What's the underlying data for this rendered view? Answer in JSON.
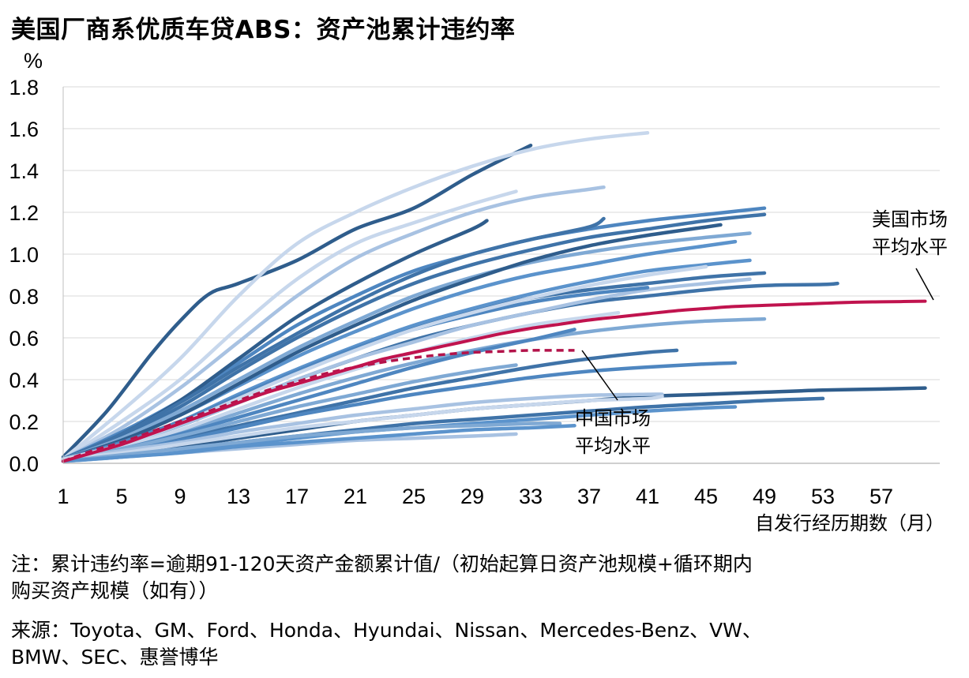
{
  "title": "美国厂商系优质车贷ABS：资产池累计违约率",
  "notes": {
    "line1": "注：累计违约率=逾期91-120天资产金额累计值/（初始起算日资产池规模+循环期内",
    "line2": "购买资产规模（如有））",
    "line3": "来源：Toyota、GM、Ford、Honda、Hyundai、Nissan、Mercedes-Benz、VW、",
    "line4": "BMW、SEC、惠誉博华"
  },
  "colors": {
    "us_avg": "#c0134e",
    "cn_avg": "#b3134a",
    "pool_palette": [
      "#2f5d8c",
      "#3f73a8",
      "#4e86c0",
      "#5b93cc",
      "#7fa9d4",
      "#a8c2e2",
      "#c7d7ec"
    ]
  },
  "chart_data": {
    "type": "line",
    "title": "美国厂商系优质车贷ABS：资产池累计违约率",
    "xlabel": "自发行经历期数（月）",
    "ylabel": "%",
    "xlim": [
      1,
      61
    ],
    "ylim": [
      0,
      1.8
    ],
    "xticks": [
      1,
      5,
      9,
      13,
      17,
      21,
      25,
      29,
      33,
      37,
      41,
      45,
      49,
      53,
      57
    ],
    "yticks": [
      0.0,
      0.2,
      0.4,
      0.6,
      0.8,
      1.0,
      1.2,
      1.4,
      1.6,
      1.8
    ],
    "grid": "horizontal",
    "annotations": [
      {
        "text_line1": "美国市场",
        "text_line2": "平均水平",
        "points_to": {
          "x": 60,
          "y": 0.775
        }
      },
      {
        "text_line1": "中国市场",
        "text_line2": "平均水平",
        "points_to": {
          "x": 36,
          "y": 0.54
        }
      }
    ],
    "series": [
      {
        "role": "us-average",
        "style": "solid",
        "color": "#c0134e",
        "x": [
          1,
          3,
          5,
          7,
          9,
          11,
          13,
          15,
          17,
          19,
          21,
          23,
          25,
          27,
          29,
          31,
          33,
          35,
          37,
          39,
          41,
          43,
          45,
          47,
          49,
          51,
          53,
          55,
          57,
          60
        ],
        "y": [
          0.01,
          0.05,
          0.09,
          0.14,
          0.19,
          0.24,
          0.29,
          0.34,
          0.38,
          0.42,
          0.46,
          0.5,
          0.53,
          0.56,
          0.59,
          0.62,
          0.645,
          0.665,
          0.685,
          0.7,
          0.715,
          0.73,
          0.74,
          0.75,
          0.755,
          0.76,
          0.765,
          0.77,
          0.772,
          0.775
        ]
      },
      {
        "role": "china-average",
        "style": "dashed",
        "color": "#b3134a",
        "x": [
          1,
          3,
          5,
          7,
          9,
          11,
          13,
          15,
          17,
          19,
          21,
          23,
          25,
          27,
          29,
          31,
          33,
          35,
          36
        ],
        "y": [
          0.01,
          0.06,
          0.1,
          0.15,
          0.2,
          0.25,
          0.3,
          0.35,
          0.39,
          0.43,
          0.46,
          0.485,
          0.505,
          0.52,
          0.53,
          0.535,
          0.54,
          0.54,
          0.54
        ]
      },
      {
        "role": "pool",
        "color": "#2f5d8c",
        "x": [
          1,
          4,
          7,
          9,
          11,
          13,
          17,
          21,
          25,
          29,
          33
        ],
        "y": [
          0.03,
          0.25,
          0.52,
          0.68,
          0.81,
          0.86,
          0.97,
          1.12,
          1.22,
          1.38,
          1.52
        ]
      },
      {
        "role": "pool",
        "color": "#c7d7ec",
        "x": [
          1,
          5,
          9,
          13,
          17,
          21,
          25,
          29,
          33,
          37,
          41
        ],
        "y": [
          0.02,
          0.25,
          0.5,
          0.8,
          1.05,
          1.2,
          1.32,
          1.42,
          1.5,
          1.55,
          1.58
        ]
      },
      {
        "role": "pool",
        "color": "#c7d7ec",
        "x": [
          1,
          5,
          9,
          13,
          17,
          21,
          25,
          29,
          32
        ],
        "y": [
          0.02,
          0.2,
          0.4,
          0.65,
          0.88,
          1.05,
          1.15,
          1.24,
          1.3
        ]
      },
      {
        "role": "pool",
        "color": "#a8c2e2",
        "x": [
          1,
          5,
          9,
          13,
          17,
          21,
          25,
          29,
          33,
          37,
          38
        ],
        "y": [
          0.02,
          0.17,
          0.36,
          0.58,
          0.8,
          0.98,
          1.1,
          1.2,
          1.27,
          1.31,
          1.32
        ]
      },
      {
        "role": "pool",
        "color": "#4e86c0",
        "x": [
          1,
          5,
          9,
          13,
          17,
          21,
          25,
          29,
          33,
          37,
          41,
          45,
          49
        ],
        "y": [
          0.02,
          0.15,
          0.3,
          0.48,
          0.66,
          0.8,
          0.92,
          1.0,
          1.07,
          1.12,
          1.16,
          1.19,
          1.22
        ]
      },
      {
        "role": "pool",
        "color": "#3f73a8",
        "x": [
          1,
          5,
          9,
          13,
          17,
          21,
          25,
          29,
          33,
          37,
          41,
          45,
          49
        ],
        "y": [
          0.02,
          0.13,
          0.27,
          0.44,
          0.6,
          0.74,
          0.86,
          0.95,
          1.02,
          1.08,
          1.12,
          1.16,
          1.19
        ]
      },
      {
        "role": "pool",
        "color": "#2f5d8c",
        "x": [
          1,
          5,
          9,
          13,
          17,
          21,
          25,
          29,
          30
        ],
        "y": [
          0.02,
          0.14,
          0.3,
          0.5,
          0.7,
          0.86,
          1.0,
          1.12,
          1.16
        ]
      },
      {
        "role": "pool",
        "color": "#3f73a8",
        "x": [
          1,
          5,
          9,
          13,
          17,
          21,
          25,
          29,
          33,
          37,
          38
        ],
        "y": [
          0.02,
          0.14,
          0.29,
          0.46,
          0.62,
          0.77,
          0.9,
          1.0,
          1.07,
          1.13,
          1.17
        ]
      },
      {
        "role": "pool",
        "color": "#7fa9d4",
        "x": [
          1,
          5,
          9,
          13,
          17,
          21,
          25,
          29,
          33,
          37,
          41,
          45,
          48
        ],
        "y": [
          0.02,
          0.12,
          0.25,
          0.4,
          0.55,
          0.68,
          0.8,
          0.89,
          0.96,
          1.01,
          1.05,
          1.08,
          1.1
        ]
      },
      {
        "role": "pool",
        "color": "#5b93cc",
        "x": [
          1,
          5,
          9,
          13,
          17,
          21,
          25,
          29,
          33,
          37,
          41,
          45,
          47
        ],
        "y": [
          0.02,
          0.11,
          0.23,
          0.37,
          0.51,
          0.63,
          0.74,
          0.83,
          0.9,
          0.95,
          1.0,
          1.04,
          1.06
        ]
      },
      {
        "role": "pool",
        "color": "#2f5d8c",
        "x": [
          1,
          5,
          9,
          13,
          17,
          21,
          25,
          29,
          33,
          37,
          41,
          45,
          46
        ],
        "y": [
          0.02,
          0.11,
          0.23,
          0.38,
          0.53,
          0.66,
          0.78,
          0.88,
          0.97,
          1.04,
          1.09,
          1.13,
          1.14
        ]
      },
      {
        "role": "pool",
        "color": "#3f73a8",
        "x": [
          1,
          5,
          9,
          13,
          17,
          21,
          25,
          29,
          33,
          37,
          41,
          45,
          49
        ],
        "y": [
          0.02,
          0.1,
          0.2,
          0.32,
          0.44,
          0.55,
          0.65,
          0.73,
          0.79,
          0.83,
          0.86,
          0.89,
          0.91
        ]
      },
      {
        "role": "pool",
        "color": "#3f73a8",
        "x": [
          1,
          5,
          9,
          13,
          17,
          21,
          25,
          29,
          33,
          37,
          41,
          45,
          49,
          53,
          54
        ],
        "y": [
          0.02,
          0.09,
          0.18,
          0.29,
          0.4,
          0.5,
          0.59,
          0.66,
          0.72,
          0.77,
          0.8,
          0.83,
          0.85,
          0.855,
          0.86
        ]
      },
      {
        "role": "pool",
        "color": "#5b93cc",
        "x": [
          1,
          5,
          9,
          13,
          17,
          21,
          25,
          29,
          33,
          37,
          41,
          45,
          48
        ],
        "y": [
          0.02,
          0.1,
          0.2,
          0.33,
          0.45,
          0.56,
          0.66,
          0.74,
          0.81,
          0.87,
          0.92,
          0.95,
          0.97
        ]
      },
      {
        "role": "pool",
        "color": "#a8c2e2",
        "x": [
          1,
          5,
          9,
          13,
          17,
          21,
          25,
          29,
          33,
          37,
          41,
          45,
          48
        ],
        "y": [
          0.02,
          0.09,
          0.18,
          0.29,
          0.4,
          0.5,
          0.58,
          0.66,
          0.72,
          0.78,
          0.83,
          0.86,
          0.88
        ]
      },
      {
        "role": "pool",
        "color": "#7fa9d4",
        "x": [
          1,
          5,
          9,
          13,
          17,
          21,
          25,
          29,
          33,
          37,
          41,
          45,
          49
        ],
        "y": [
          0.02,
          0.08,
          0.15,
          0.24,
          0.33,
          0.41,
          0.48,
          0.54,
          0.59,
          0.63,
          0.66,
          0.68,
          0.69
        ]
      },
      {
        "role": "pool",
        "color": "#c7d7ec",
        "x": [
          1,
          5,
          9,
          13,
          17,
          21,
          25,
          29,
          33,
          37,
          39
        ],
        "y": [
          0.02,
          0.08,
          0.16,
          0.26,
          0.36,
          0.45,
          0.53,
          0.6,
          0.66,
          0.7,
          0.72
        ]
      },
      {
        "role": "pool",
        "color": "#4e86c0",
        "x": [
          1,
          5,
          9,
          13,
          17,
          21,
          25,
          29,
          33,
          36
        ],
        "y": [
          0.02,
          0.07,
          0.14,
          0.22,
          0.3,
          0.38,
          0.46,
          0.53,
          0.59,
          0.64
        ]
      },
      {
        "role": "pool",
        "color": "#3f73a8",
        "x": [
          1,
          5,
          9,
          13,
          17,
          21,
          25,
          29,
          33,
          37,
          41,
          43
        ],
        "y": [
          0.02,
          0.06,
          0.12,
          0.18,
          0.24,
          0.3,
          0.36,
          0.41,
          0.46,
          0.5,
          0.53,
          0.54
        ]
      },
      {
        "role": "pool",
        "color": "#4e86c0",
        "x": [
          1,
          5,
          9,
          13,
          17,
          21,
          25,
          29,
          33,
          37,
          41,
          45,
          47
        ],
        "y": [
          0.02,
          0.06,
          0.11,
          0.17,
          0.23,
          0.28,
          0.33,
          0.37,
          0.41,
          0.44,
          0.46,
          0.475,
          0.48
        ]
      },
      {
        "role": "pool",
        "color": "#7fa9d4",
        "x": [
          1,
          5,
          9,
          13,
          17,
          21,
          25,
          29,
          32
        ],
        "y": [
          0.02,
          0.07,
          0.13,
          0.2,
          0.27,
          0.33,
          0.39,
          0.44,
          0.47
        ]
      },
      {
        "role": "pool",
        "color": "#2f5d8c",
        "x": [
          1,
          5,
          9,
          13,
          17,
          21,
          25,
          29,
          33,
          37,
          41,
          45,
          49,
          53,
          57,
          60
        ],
        "y": [
          0.01,
          0.04,
          0.08,
          0.12,
          0.16,
          0.2,
          0.23,
          0.26,
          0.28,
          0.3,
          0.32,
          0.33,
          0.34,
          0.35,
          0.355,
          0.36
        ]
      },
      {
        "role": "pool",
        "color": "#3f73a8",
        "x": [
          1,
          5,
          9,
          13,
          17,
          21,
          25,
          29,
          33,
          37,
          41,
          45,
          49,
          53
        ],
        "y": [
          0.01,
          0.04,
          0.07,
          0.1,
          0.13,
          0.16,
          0.19,
          0.21,
          0.23,
          0.25,
          0.27,
          0.285,
          0.3,
          0.31
        ]
      },
      {
        "role": "pool",
        "color": "#5b93cc",
        "x": [
          1,
          5,
          9,
          13,
          17,
          21,
          25,
          29,
          33,
          37,
          41,
          45,
          47
        ],
        "y": [
          0.01,
          0.03,
          0.06,
          0.09,
          0.12,
          0.15,
          0.17,
          0.19,
          0.21,
          0.23,
          0.25,
          0.265,
          0.27
        ]
      },
      {
        "role": "pool",
        "color": "#a8c2e2",
        "x": [
          1,
          5,
          9,
          13,
          17,
          21,
          25,
          29,
          33,
          37,
          41,
          42
        ],
        "y": [
          0.02,
          0.06,
          0.1,
          0.15,
          0.19,
          0.23,
          0.26,
          0.29,
          0.31,
          0.325,
          0.33,
          0.33
        ]
      },
      {
        "role": "pool",
        "color": "#c7d7ec",
        "x": [
          1,
          5,
          9,
          13,
          17,
          21,
          25,
          29,
          33,
          37,
          41,
          42
        ],
        "y": [
          0.02,
          0.05,
          0.09,
          0.13,
          0.17,
          0.2,
          0.23,
          0.26,
          0.28,
          0.3,
          0.31,
          0.32
        ]
      },
      {
        "role": "pool",
        "color": "#7fa9d4",
        "x": [
          1,
          5,
          9,
          13,
          17,
          21,
          25,
          29,
          33,
          35
        ],
        "y": [
          0.01,
          0.04,
          0.07,
          0.1,
          0.13,
          0.15,
          0.17,
          0.18,
          0.19,
          0.19
        ]
      },
      {
        "role": "pool",
        "color": "#a8c2e2",
        "x": [
          1,
          5,
          9,
          13,
          17,
          21,
          25,
          29,
          32
        ],
        "y": [
          0.01,
          0.03,
          0.05,
          0.07,
          0.09,
          0.11,
          0.12,
          0.13,
          0.14
        ]
      },
      {
        "role": "pool",
        "color": "#5b93cc",
        "x": [
          1,
          5,
          9,
          13,
          17,
          21,
          25,
          29,
          33,
          36
        ],
        "y": [
          0.01,
          0.03,
          0.05,
          0.08,
          0.1,
          0.12,
          0.14,
          0.16,
          0.17,
          0.18
        ]
      },
      {
        "role": "pool",
        "color": "#4e86c0",
        "x": [
          1,
          5,
          9,
          13,
          17,
          21,
          25,
          29,
          33,
          37,
          41
        ],
        "y": [
          0.02,
          0.1,
          0.2,
          0.32,
          0.44,
          0.55,
          0.64,
          0.71,
          0.77,
          0.81,
          0.84
        ]
      },
      {
        "role": "pool",
        "color": "#c7d7ec",
        "x": [
          1,
          5,
          9,
          13,
          17,
          21,
          25,
          29,
          33,
          37,
          41,
          45
        ],
        "y": [
          0.02,
          0.09,
          0.19,
          0.31,
          0.43,
          0.54,
          0.64,
          0.72,
          0.79,
          0.85,
          0.9,
          0.94
        ]
      }
    ]
  }
}
